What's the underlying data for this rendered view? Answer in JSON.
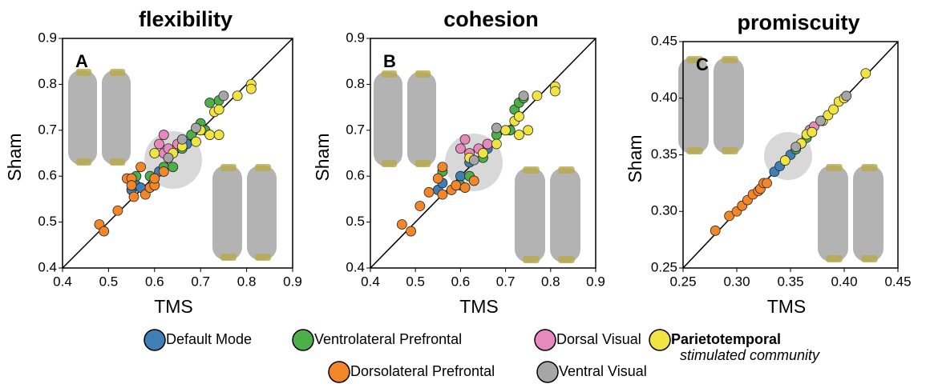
{
  "chart_data": [
    {
      "type": "scatter",
      "title": "flexibility",
      "label": "A",
      "xlabel": "TMS",
      "ylabel": "Sham",
      "xlim": [
        0.4,
        0.9
      ],
      "ylim": [
        0.4,
        0.9
      ],
      "xticks": [
        0.4,
        0.5,
        0.6,
        0.7,
        0.8,
        0.9
      ],
      "yticks": [
        0.4,
        0.5,
        0.6,
        0.7,
        0.8,
        0.9
      ],
      "series": [
        {
          "name": "Default Mode",
          "color": "#3f7fb5",
          "x": [
            0.55,
            0.56,
            0.57,
            0.61,
            0.63,
            0.67
          ],
          "values": [
            0.57,
            0.58,
            0.575,
            0.61,
            0.64,
            0.67
          ]
        },
        {
          "name": "Ventrolateral Prefrontal",
          "color": "#4daf4a",
          "x": [
            0.56,
            0.59,
            0.62,
            0.64,
            0.66,
            0.68,
            0.7,
            0.71,
            0.72,
            0.74
          ],
          "values": [
            0.6,
            0.6,
            0.62,
            0.62,
            0.66,
            0.69,
            0.715,
            0.7,
            0.76,
            0.765
          ]
        },
        {
          "name": "Dorsal Visual",
          "color": "#e889bd",
          "x": [
            0.61,
            0.62,
            0.62,
            0.63,
            0.65
          ],
          "values": [
            0.67,
            0.69,
            0.65,
            0.66,
            0.67
          ]
        },
        {
          "name": "Parietotemporal",
          "color": "#f0e442",
          "x": [
            0.6,
            0.64,
            0.66,
            0.69,
            0.7,
            0.72,
            0.73,
            0.74,
            0.74,
            0.78,
            0.81,
            0.81
          ],
          "values": [
            0.65,
            0.65,
            0.665,
            0.675,
            0.7,
            0.69,
            0.74,
            0.745,
            0.69,
            0.775,
            0.8,
            0.79
          ]
        },
        {
          "name": "Dorsolateral Prefrontal",
          "color": "#f4862a",
          "x": [
            0.48,
            0.49,
            0.52,
            0.54,
            0.55,
            0.55,
            0.555,
            0.57,
            0.58,
            0.59,
            0.6,
            0.6,
            0.62
          ],
          "values": [
            0.495,
            0.48,
            0.525,
            0.595,
            0.595,
            0.58,
            0.555,
            0.62,
            0.56,
            0.575,
            0.58,
            0.595,
            0.61
          ]
        },
        {
          "name": "Ventral Visual",
          "color": "#a6a6a6",
          "x": [
            0.63,
            0.66,
            0.69,
            0.75
          ],
          "values": [
            0.64,
            0.68,
            0.705,
            0.775
          ]
        }
      ]
    },
    {
      "type": "scatter",
      "title": "cohesion",
      "label": "B",
      "xlabel": "TMS",
      "ylabel": "Sham",
      "xlim": [
        0.4,
        0.9
      ],
      "ylim": [
        0.4,
        0.9
      ],
      "xticks": [
        0.4,
        0.5,
        0.6,
        0.7,
        0.8,
        0.9
      ],
      "yticks": [
        0.4,
        0.5,
        0.6,
        0.7,
        0.8,
        0.9
      ],
      "series": [
        {
          "name": "Default Mode",
          "color": "#3f7fb5",
          "x": [
            0.55,
            0.56,
            0.6,
            0.62,
            0.66
          ],
          "values": [
            0.57,
            0.585,
            0.6,
            0.63,
            0.66
          ]
        },
        {
          "name": "Ventrolateral Prefrontal",
          "color": "#4daf4a",
          "x": [
            0.56,
            0.6,
            0.62,
            0.65,
            0.68,
            0.71,
            0.72,
            0.73,
            0.74
          ],
          "values": [
            0.61,
            0.58,
            0.6,
            0.64,
            0.69,
            0.7,
            0.745,
            0.76,
            0.77
          ]
        },
        {
          "name": "Dorsal Visual",
          "color": "#e889bd",
          "x": [
            0.6,
            0.61,
            0.62,
            0.64,
            0.66
          ],
          "values": [
            0.66,
            0.68,
            0.65,
            0.66,
            0.67
          ]
        },
        {
          "name": "Parietotemporal",
          "color": "#f0e442",
          "x": [
            0.62,
            0.65,
            0.68,
            0.7,
            0.72,
            0.73,
            0.73,
            0.75,
            0.77,
            0.81,
            0.81
          ],
          "values": [
            0.64,
            0.65,
            0.67,
            0.7,
            0.72,
            0.73,
            0.69,
            0.7,
            0.775,
            0.795,
            0.785
          ]
        },
        {
          "name": "Dorsolateral Prefrontal",
          "color": "#f4862a",
          "x": [
            0.47,
            0.49,
            0.51,
            0.53,
            0.55,
            0.56,
            0.56,
            0.58,
            0.59,
            0.61,
            0.63
          ],
          "values": [
            0.495,
            0.48,
            0.535,
            0.565,
            0.595,
            0.62,
            0.56,
            0.57,
            0.58,
            0.575,
            0.59
          ]
        },
        {
          "name": "Ventral Visual",
          "color": "#a6a6a6",
          "x": [
            0.63,
            0.68,
            0.74
          ],
          "values": [
            0.635,
            0.705,
            0.775
          ]
        }
      ]
    },
    {
      "type": "scatter",
      "title": "promiscuity",
      "label": "C",
      "xlabel": "TMS",
      "ylabel": "Sham",
      "xlim": [
        0.25,
        0.45
      ],
      "ylim": [
        0.25,
        0.45
      ],
      "xticks": [
        0.25,
        {
          "value": 0.3,
          "label": "0.30"
        },
        0.35,
        {
          "value": 0.4,
          "label": "0.40"
        },
        0.45
      ],
      "yticks": [
        0.25,
        {
          "value": 0.3,
          "label": "0.30"
        },
        0.35,
        {
          "value": 0.4,
          "label": "0.40"
        },
        0.45
      ],
      "series": [
        {
          "name": "Default Mode",
          "color": "#3f7fb5",
          "x": [
            0.335,
            0.34,
            0.35
          ],
          "values": [
            0.335,
            0.34,
            0.35
          ]
        },
        {
          "name": "Ventrolateral Prefrontal",
          "color": "#4daf4a",
          "x": [
            0.355,
            0.36,
            0.365,
            0.37
          ],
          "values": [
            0.355,
            0.36,
            0.365,
            0.37
          ]
        },
        {
          "name": "Dorsal Visual",
          "color": "#e889bd",
          "x": [
            0.368,
            0.372
          ],
          "values": [
            0.372,
            0.375
          ]
        },
        {
          "name": "Parietotemporal",
          "color": "#f0e442",
          "x": [
            0.345,
            0.36,
            0.365,
            0.37,
            0.38,
            0.385,
            0.39,
            0.395,
            0.4,
            0.42
          ],
          "values": [
            0.345,
            0.36,
            0.368,
            0.37,
            0.38,
            0.385,
            0.39,
            0.397,
            0.4,
            0.422
          ]
        },
        {
          "name": "Dorsolateral Prefrontal",
          "color": "#f4862a",
          "x": [
            0.28,
            0.293,
            0.3,
            0.305,
            0.31,
            0.315,
            0.32,
            0.322,
            0.325,
            0.328
          ],
          "values": [
            0.283,
            0.296,
            0.3,
            0.305,
            0.31,
            0.315,
            0.318,
            0.32,
            0.325,
            0.325
          ]
        },
        {
          "name": "Ventral Visual",
          "color": "#a6a6a6",
          "x": [
            0.355,
            0.378,
            0.402
          ],
          "values": [
            0.357,
            0.38,
            0.402
          ]
        }
      ]
    }
  ],
  "legend_note": "stimulated community"
}
